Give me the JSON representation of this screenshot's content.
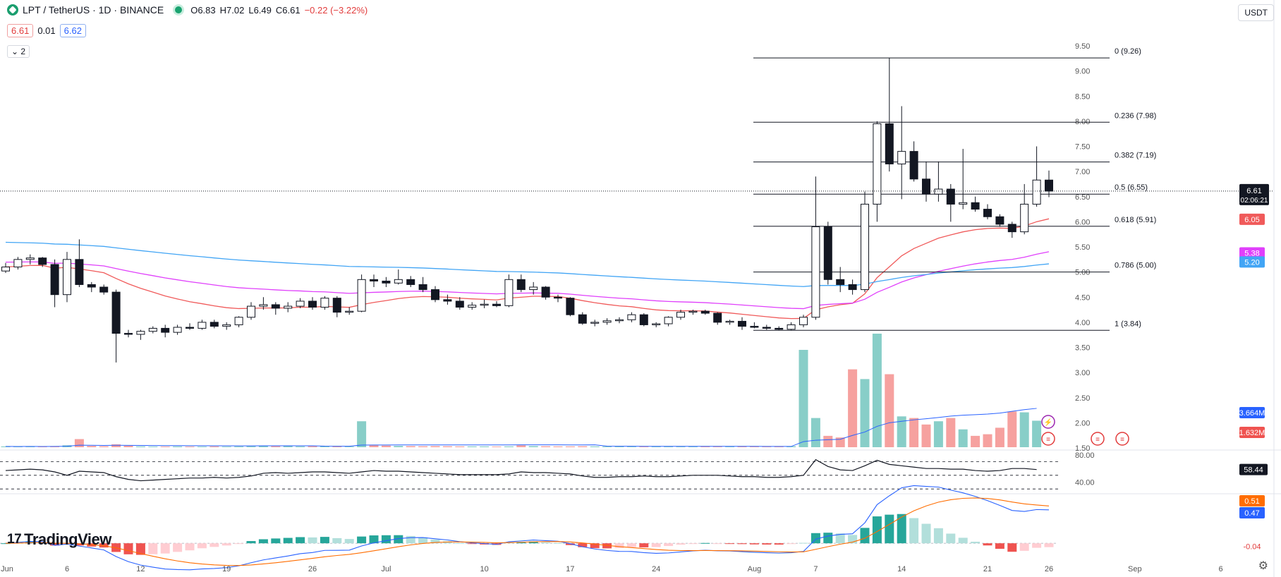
{
  "header": {
    "symbol": "LPT / TetherUS · 1D · BINANCE",
    "open": "O6.83",
    "high": "H7.02",
    "low": "L6.49",
    "close": "C6.61",
    "change": "−0.22 (−3.22%)",
    "bid": "6.61",
    "spread": "0.01",
    "ask": "6.62",
    "collapse_count": "2",
    "currency": "USDT",
    "brand": "TradingView"
  },
  "colors": {
    "up": "#26a69a",
    "down": "#ef5350",
    "ema_fast": "#f05a5a",
    "ema_mid": "#e040fb",
    "ema_slow": "#42a5f5",
    "rsi": "#131722",
    "macd": "#2962ff",
    "signal": "#ff6d00"
  },
  "chart_data": {
    "type": "candlestick",
    "x_tick_labels": [
      "Jun",
      "6",
      "12",
      "19",
      "26",
      "Jul",
      "10",
      "17",
      "24",
      "Aug",
      "7",
      "14",
      "21",
      "26",
      "Sep",
      "6"
    ],
    "y_tick_labels": [
      "9.50",
      "9.00",
      "8.50",
      "8.00",
      "7.50",
      "7.00",
      "6.50",
      "6.00",
      "5.50",
      "5.00",
      "4.50",
      "4.00",
      "3.50",
      "3.00",
      "2.50",
      "2.00",
      "1.50"
    ],
    "ylim": [
      1.5,
      9.5
    ],
    "candles": [
      {
        "o": 5.02,
        "h": 5.18,
        "l": 4.98,
        "c": 5.1
      },
      {
        "o": 5.1,
        "h": 5.3,
        "l": 5.05,
        "c": 5.25
      },
      {
        "o": 5.25,
        "h": 5.35,
        "l": 5.15,
        "c": 5.28
      },
      {
        "o": 5.28,
        "h": 5.3,
        "l": 5.1,
        "c": 5.15
      },
      {
        "o": 5.15,
        "h": 5.25,
        "l": 4.3,
        "c": 4.55
      },
      {
        "o": 4.55,
        "h": 5.4,
        "l": 4.4,
        "c": 5.25
      },
      {
        "o": 5.25,
        "h": 5.65,
        "l": 4.7,
        "c": 4.75
      },
      {
        "o": 4.75,
        "h": 4.8,
        "l": 4.6,
        "c": 4.7
      },
      {
        "o": 4.7,
        "h": 4.75,
        "l": 4.55,
        "c": 4.6
      },
      {
        "o": 4.6,
        "h": 4.65,
        "l": 3.2,
        "c": 3.78
      },
      {
        "o": 3.78,
        "h": 3.85,
        "l": 3.7,
        "c": 3.76
      },
      {
        "o": 3.76,
        "h": 3.85,
        "l": 3.65,
        "c": 3.82
      },
      {
        "o": 3.82,
        "h": 3.92,
        "l": 3.78,
        "c": 3.88
      },
      {
        "o": 3.88,
        "h": 3.95,
        "l": 3.7,
        "c": 3.8
      },
      {
        "o": 3.8,
        "h": 3.95,
        "l": 3.75,
        "c": 3.9
      },
      {
        "o": 3.9,
        "h": 3.98,
        "l": 3.85,
        "c": 3.88
      },
      {
        "o": 3.88,
        "h": 4.05,
        "l": 3.85,
        "c": 4.0
      },
      {
        "o": 4.0,
        "h": 4.05,
        "l": 3.88,
        "c": 3.92
      },
      {
        "o": 3.92,
        "h": 4.0,
        "l": 3.85,
        "c": 3.95
      },
      {
        "o": 3.95,
        "h": 4.12,
        "l": 3.9,
        "c": 4.1
      },
      {
        "o": 4.1,
        "h": 4.4,
        "l": 4.05,
        "c": 4.32
      },
      {
        "o": 4.32,
        "h": 4.5,
        "l": 4.25,
        "c": 4.35
      },
      {
        "o": 4.35,
        "h": 4.4,
        "l": 4.15,
        "c": 4.28
      },
      {
        "o": 4.28,
        "h": 4.4,
        "l": 4.2,
        "c": 4.32
      },
      {
        "o": 4.32,
        "h": 4.48,
        "l": 4.28,
        "c": 4.42
      },
      {
        "o": 4.42,
        "h": 4.5,
        "l": 4.25,
        "c": 4.3
      },
      {
        "o": 4.3,
        "h": 4.52,
        "l": 4.25,
        "c": 4.48
      },
      {
        "o": 4.48,
        "h": 4.52,
        "l": 4.1,
        "c": 4.2
      },
      {
        "o": 4.2,
        "h": 4.3,
        "l": 4.15,
        "c": 4.22
      },
      {
        "o": 4.22,
        "h": 4.95,
        "l": 4.2,
        "c": 4.85
      },
      {
        "o": 4.85,
        "h": 4.95,
        "l": 4.7,
        "c": 4.82
      },
      {
        "o": 4.82,
        "h": 4.9,
        "l": 4.7,
        "c": 4.78
      },
      {
        "o": 4.78,
        "h": 5.05,
        "l": 4.75,
        "c": 4.85
      },
      {
        "o": 4.85,
        "h": 4.92,
        "l": 4.7,
        "c": 4.75
      },
      {
        "o": 4.75,
        "h": 4.9,
        "l": 4.6,
        "c": 4.65
      },
      {
        "o": 4.65,
        "h": 4.72,
        "l": 4.4,
        "c": 4.45
      },
      {
        "o": 4.45,
        "h": 4.55,
        "l": 4.35,
        "c": 4.42
      },
      {
        "o": 4.42,
        "h": 4.5,
        "l": 4.25,
        "c": 4.3
      },
      {
        "o": 4.3,
        "h": 4.4,
        "l": 4.25,
        "c": 4.34
      },
      {
        "o": 4.34,
        "h": 4.45,
        "l": 4.28,
        "c": 4.36
      },
      {
        "o": 4.36,
        "h": 4.42,
        "l": 4.3,
        "c": 4.33
      },
      {
        "o": 4.33,
        "h": 4.95,
        "l": 4.3,
        "c": 4.85
      },
      {
        "o": 4.85,
        "h": 4.95,
        "l": 4.6,
        "c": 4.65
      },
      {
        "o": 4.65,
        "h": 4.8,
        "l": 4.55,
        "c": 4.7
      },
      {
        "o": 4.7,
        "h": 4.72,
        "l": 4.45,
        "c": 4.5
      },
      {
        "o": 4.5,
        "h": 4.55,
        "l": 4.4,
        "c": 4.48
      },
      {
        "o": 4.48,
        "h": 4.5,
        "l": 4.12,
        "c": 4.15
      },
      {
        "o": 4.15,
        "h": 4.2,
        "l": 3.95,
        "c": 3.98
      },
      {
        "o": 3.98,
        "h": 4.05,
        "l": 3.92,
        "c": 4.0
      },
      {
        "o": 4.0,
        "h": 4.08,
        "l": 3.95,
        "c": 4.03
      },
      {
        "o": 4.03,
        "h": 4.1,
        "l": 3.98,
        "c": 4.05
      },
      {
        "o": 4.05,
        "h": 4.2,
        "l": 4.0,
        "c": 4.15
      },
      {
        "o": 4.15,
        "h": 4.18,
        "l": 3.92,
        "c": 3.95
      },
      {
        "o": 3.95,
        "h": 4.0,
        "l": 3.9,
        "c": 3.97
      },
      {
        "o": 3.97,
        "h": 4.12,
        "l": 3.92,
        "c": 4.1
      },
      {
        "o": 4.1,
        "h": 4.25,
        "l": 4.05,
        "c": 4.2
      },
      {
        "o": 4.2,
        "h": 4.25,
        "l": 4.15,
        "c": 4.22
      },
      {
        "o": 4.22,
        "h": 4.25,
        "l": 4.15,
        "c": 4.18
      },
      {
        "o": 4.18,
        "h": 4.2,
        "l": 3.95,
        "c": 4.0
      },
      {
        "o": 4.0,
        "h": 4.05,
        "l": 3.95,
        "c": 4.02
      },
      {
        "o": 4.02,
        "h": 4.1,
        "l": 3.85,
        "c": 3.92
      },
      {
        "o": 3.92,
        "h": 4.0,
        "l": 3.88,
        "c": 3.9
      },
      {
        "o": 3.9,
        "h": 3.95,
        "l": 3.85,
        "c": 3.88
      },
      {
        "o": 3.88,
        "h": 3.92,
        "l": 3.84,
        "c": 3.86
      },
      {
        "o": 3.86,
        "h": 4.0,
        "l": 3.84,
        "c": 3.95
      },
      {
        "o": 3.95,
        "h": 4.15,
        "l": 3.9,
        "c": 4.1
      },
      {
        "o": 4.1,
        "h": 6.9,
        "l": 4.05,
        "c": 5.9
      },
      {
        "o": 5.9,
        "h": 6.0,
        "l": 4.75,
        "c": 4.85
      },
      {
        "o": 4.85,
        "h": 5.1,
        "l": 4.6,
        "c": 4.75
      },
      {
        "o": 4.75,
        "h": 4.85,
        "l": 4.55,
        "c": 4.65
      },
      {
        "o": 4.65,
        "h": 6.6,
        "l": 4.6,
        "c": 6.35
      },
      {
        "o": 6.35,
        "h": 8.0,
        "l": 6.0,
        "c": 7.95
      },
      {
        "o": 7.95,
        "h": 9.26,
        "l": 7.0,
        "c": 7.15
      },
      {
        "o": 7.15,
        "h": 8.3,
        "l": 6.45,
        "c": 7.4
      },
      {
        "o": 7.4,
        "h": 7.6,
        "l": 6.8,
        "c": 6.85
      },
      {
        "o": 6.85,
        "h": 7.2,
        "l": 6.4,
        "c": 6.55
      },
      {
        "o": 6.55,
        "h": 7.2,
        "l": 6.4,
        "c": 6.65
      },
      {
        "o": 6.65,
        "h": 6.75,
        "l": 6.0,
        "c": 6.35
      },
      {
        "o": 6.35,
        "h": 7.45,
        "l": 6.25,
        "c": 6.38
      },
      {
        "o": 6.38,
        "h": 6.5,
        "l": 6.2,
        "c": 6.25
      },
      {
        "o": 6.25,
        "h": 6.35,
        "l": 6.05,
        "c": 6.1
      },
      {
        "o": 6.1,
        "h": 6.15,
        "l": 5.9,
        "c": 5.95
      },
      {
        "o": 5.95,
        "h": 6.0,
        "l": 5.68,
        "c": 5.8
      },
      {
        "o": 5.8,
        "h": 6.75,
        "l": 5.75,
        "c": 6.35
      },
      {
        "o": 6.35,
        "h": 7.5,
        "l": 6.3,
        "c": 6.83
      },
      {
        "o": 6.83,
        "h": 7.02,
        "l": 6.49,
        "c": 6.61
      }
    ],
    "volume": [
      0.05,
      0.04,
      0.05,
      0.04,
      0.06,
      0.12,
      0.5,
      0.08,
      0.06,
      0.18,
      0.09,
      0.05,
      0.04,
      0.04,
      0.05,
      0.04,
      0.04,
      0.05,
      0.04,
      0.05,
      0.06,
      0.08,
      0.06,
      0.07,
      0.05,
      0.06,
      0.07,
      0.05,
      0.04,
      1.6,
      0.15,
      0.1,
      0.08,
      0.07,
      0.06,
      0.07,
      0.06,
      0.05,
      0.05,
      0.05,
      0.04,
      0.05,
      0.12,
      0.07,
      0.06,
      0.05,
      0.05,
      0.06,
      0.05,
      0.05,
      0.05,
      0.04,
      0.04,
      0.05,
      0.05,
      0.04,
      0.04,
      0.05,
      0.04,
      0.04,
      0.05,
      0.04,
      0.04,
      0.05,
      0.06,
      6.0,
      1.8,
      0.7,
      0.6,
      4.8,
      4.2,
      7.0,
      4.5,
      1.9,
      1.8,
      1.4,
      1.6,
      1.8,
      1.1,
      0.7,
      0.8,
      1.2,
      2.2,
      2.15,
      1.632
    ],
    "volume_ma_value": "3.664M",
    "volume_last_value": "1.632M",
    "ema_values": {
      "ema_fast": "6.05",
      "ema_mid": "5.38",
      "ema_slow": "5.20"
    },
    "fib_levels": [
      {
        "label": "0 (9.26)",
        "price": 9.26
      },
      {
        "label": "0.236 (7.98)",
        "price": 7.98
      },
      {
        "label": "0.382 (7.19)",
        "price": 7.19
      },
      {
        "label": "0.5 (6.55)",
        "price": 6.55
      },
      {
        "label": "0.618 (5.91)",
        "price": 5.91
      },
      {
        "label": "0.786 (5.00)",
        "price": 5.0
      },
      {
        "label": "1 (3.84)",
        "price": 3.84
      }
    ],
    "last_price": "6.61",
    "countdown": "02:06:21",
    "rsi": {
      "ylim": [
        25,
        85
      ],
      "tick_labels": [
        "80.00",
        "40.00"
      ],
      "upper": 70,
      "lower": 30,
      "mid": 50,
      "last": "58.44",
      "values": [
        57,
        58,
        59,
        58,
        55,
        50,
        56,
        55,
        54,
        48,
        44,
        42,
        43,
        44,
        45,
        46,
        46,
        47,
        46,
        47,
        49,
        53,
        54,
        53,
        54,
        55,
        55,
        54,
        53,
        55,
        57,
        56,
        56,
        55,
        54,
        53,
        52,
        51,
        51,
        51,
        51,
        52,
        55,
        54,
        54,
        53,
        52,
        49,
        47,
        47,
        48,
        48,
        49,
        48,
        48,
        49,
        50,
        50,
        50,
        49,
        48,
        48,
        47,
        47,
        48,
        50,
        73,
        63,
        58,
        57,
        64,
        72,
        66,
        64,
        62,
        60,
        60,
        59,
        59,
        57,
        56,
        57,
        60,
        60,
        58.44
      ]
    },
    "macd": {
      "ylim": [
        -0.18,
        0.62
      ],
      "macd_last": "0.47",
      "signal_last": "0.51",
      "hist_last": "-0.04"
    }
  }
}
